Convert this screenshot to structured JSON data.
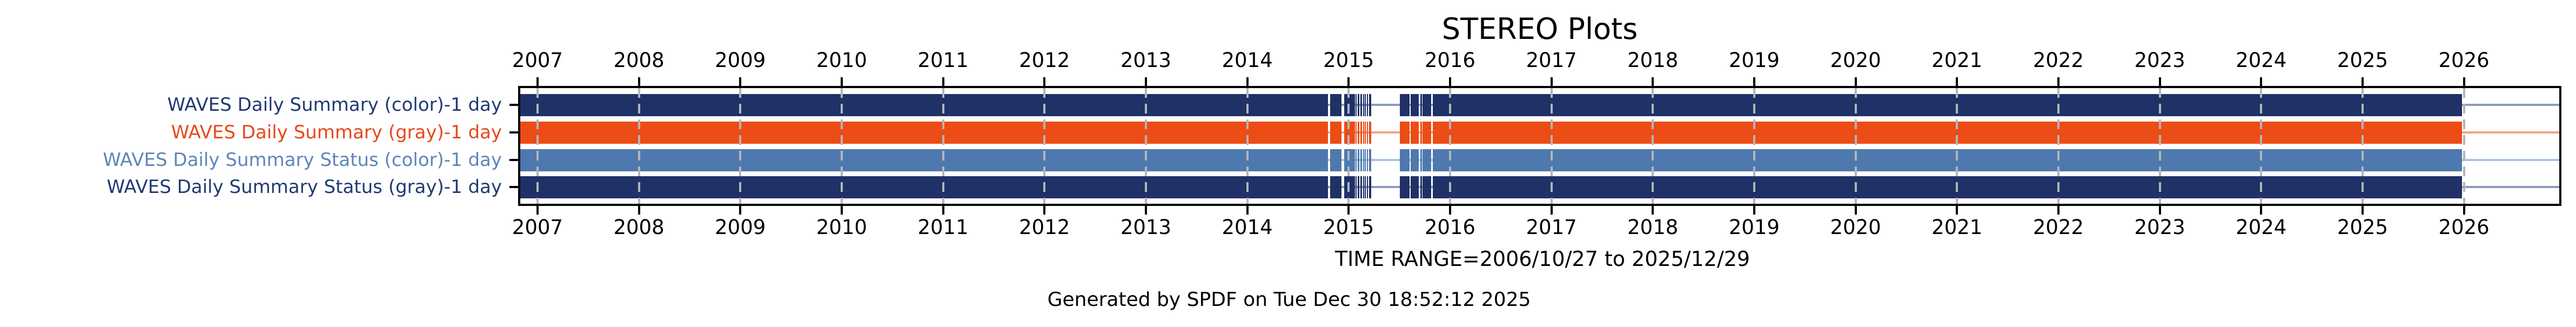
{
  "title": "STEREO Plots",
  "footer": {
    "time_range": "TIME RANGE=2006/10/27 to 2025/12/29",
    "generated": "Generated by SPDF on Tue Dec 30 18:52:12 2025"
  },
  "colors": {
    "axis": "#000000",
    "gridline": "#b5b5b5",
    "background": "#ffffff"
  },
  "chart_data": {
    "type": "timeline-availability",
    "title": "STEREO Plots",
    "x_axis": {
      "unit": "year",
      "range_start": 2006.83,
      "range_end": 2026.94,
      "data_start_label": "2006/10/27",
      "data_end_label": "2025/12/29",
      "tick_years": [
        2007,
        2008,
        2009,
        2010,
        2011,
        2012,
        2013,
        2014,
        2015,
        2016,
        2017,
        2018,
        2019,
        2020,
        2021,
        2022,
        2023,
        2024,
        2025,
        2026
      ],
      "gridlines": "dashed-vertical-per-year",
      "ticks_position": "top-and-bottom-outward"
    },
    "segments_shared_by_all_rows": [
      [
        2006.83,
        2014.795
      ],
      [
        2014.82,
        2014.93
      ],
      [
        2014.955,
        2015.061
      ],
      [
        2015.07,
        2015.081
      ],
      [
        2015.091,
        2015.106
      ],
      [
        2015.117,
        2015.131
      ],
      [
        2015.14,
        2015.151
      ],
      [
        2015.158,
        2015.169
      ],
      [
        2015.18,
        2015.191
      ],
      [
        2015.2,
        2015.223
      ],
      [
        2015.505,
        2015.6
      ],
      [
        2015.612,
        2015.692
      ],
      [
        2015.708,
        2015.724
      ],
      [
        2015.731,
        2015.815
      ],
      [
        2015.829,
        2025.981
      ]
    ],
    "rows": [
      {
        "label": "WAVES Daily Summary (color)-1 day",
        "label_color": "#203a73",
        "bar_color": "#1f3166",
        "line_color": "#8d9ac0"
      },
      {
        "label": "WAVES Daily Summary (gray)-1 day",
        "label_color": "#e8481b",
        "bar_color": "#ec4c15",
        "line_color": "#f3a287"
      },
      {
        "label": "WAVES Daily Summary Status (color)-1 day",
        "label_color": "#5e86ba",
        "bar_color": "#4e79ae",
        "line_color": "#aac2de"
      },
      {
        "label": "WAVES Daily Summary Status (gray)-1 day",
        "label_color": "#203a73",
        "bar_color": "#1f3166",
        "line_color": "#8d9ac0"
      }
    ]
  }
}
